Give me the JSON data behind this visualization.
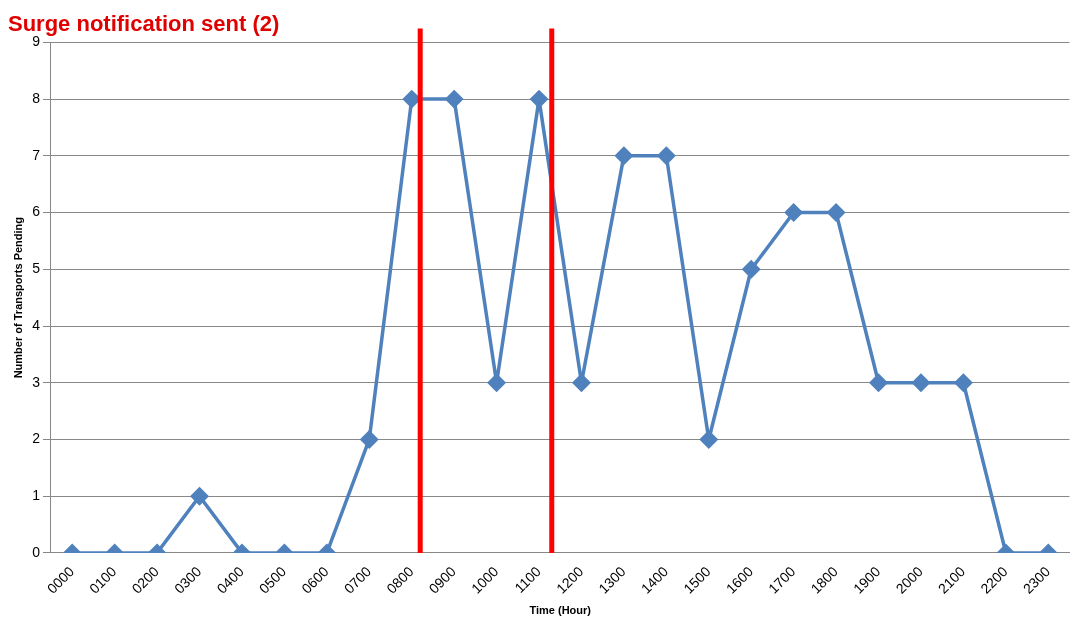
{
  "chart_data": {
    "type": "line",
    "title": "Surge notification sent (2)",
    "xlabel": "Time (Hour)",
    "ylabel": "Number of Transports Pending",
    "x": [
      0,
      100,
      200,
      300,
      400,
      500,
      600,
      700,
      800,
      900,
      1000,
      1100,
      1200,
      1300,
      1400,
      1500,
      1600,
      1700,
      1800,
      1900,
      2000,
      2100,
      2200,
      2300
    ],
    "series": [
      {
        "color": "#4f81bd",
        "values": [
          0,
          0,
          0,
          1,
          0,
          0,
          0,
          2,
          8,
          8,
          3,
          8,
          3,
          7,
          7,
          2,
          5,
          6,
          6,
          3,
          3,
          3,
          0,
          0
        ]
      }
    ],
    "xlim": [
      -50,
      2350
    ],
    "xticks": [
      {
        "value": 0,
        "label": "0000"
      },
      {
        "value": 100,
        "label": "0100"
      },
      {
        "value": 200,
        "label": "0200"
      },
      {
        "value": 300,
        "label": "0300"
      },
      {
        "value": 400,
        "label": "0400"
      },
      {
        "value": 500,
        "label": "0500"
      },
      {
        "value": 600,
        "label": "0600"
      },
      {
        "value": 700,
        "label": "0700"
      },
      {
        "value": 800,
        "label": "0800"
      },
      {
        "value": 900,
        "label": "0900"
      },
      {
        "value": 1000,
        "label": "1000"
      },
      {
        "value": 1100,
        "label": "1100"
      },
      {
        "value": 1200,
        "label": "1200"
      },
      {
        "value": 1300,
        "label": "1300"
      },
      {
        "value": 1400,
        "label": "1400"
      },
      {
        "value": 1500,
        "label": "1500"
      },
      {
        "value": 1600,
        "label": "1600"
      },
      {
        "value": 1700,
        "label": "1700"
      },
      {
        "value": 1800,
        "label": "1800"
      },
      {
        "value": 1900,
        "label": "1900"
      },
      {
        "value": 2000,
        "label": "2000"
      },
      {
        "value": 2100,
        "label": "2100"
      },
      {
        "value": 2200,
        "label": "2200"
      },
      {
        "value": 2300,
        "label": "2300"
      }
    ],
    "ylim": [
      0,
      9
    ],
    "yticks": [
      0,
      1,
      2,
      3,
      4,
      5,
      6,
      7,
      8,
      9
    ],
    "ref_lines": [
      {
        "axis": "x",
        "value": 820,
        "color": "#ff0000"
      },
      {
        "axis": "x",
        "value": 1130,
        "color": "#ff0000"
      }
    ],
    "grid": "y",
    "marker": "diamond",
    "line_style": "solid",
    "legend": false
  }
}
